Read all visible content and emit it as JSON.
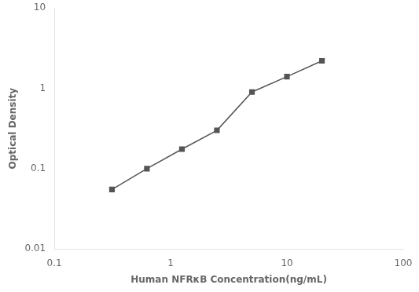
{
  "chart_data": {
    "type": "line",
    "x": [
      0.313,
      0.625,
      1.25,
      2.5,
      5,
      10,
      20
    ],
    "values": [
      0.055,
      0.1,
      0.175,
      0.3,
      0.9,
      1.4,
      2.2
    ],
    "xlabel": "Human NFRκB Concentration(ng/mL)",
    "ylabel": "Optical Density",
    "xlim": [
      0.1,
      100
    ],
    "ylim": [
      0.01,
      10
    ],
    "xticks": [
      0.1,
      1,
      10,
      100
    ],
    "yticks": [
      0.01,
      0.1,
      1,
      10
    ],
    "log": true,
    "grid": false,
    "color": "#555555",
    "marker": "square"
  }
}
